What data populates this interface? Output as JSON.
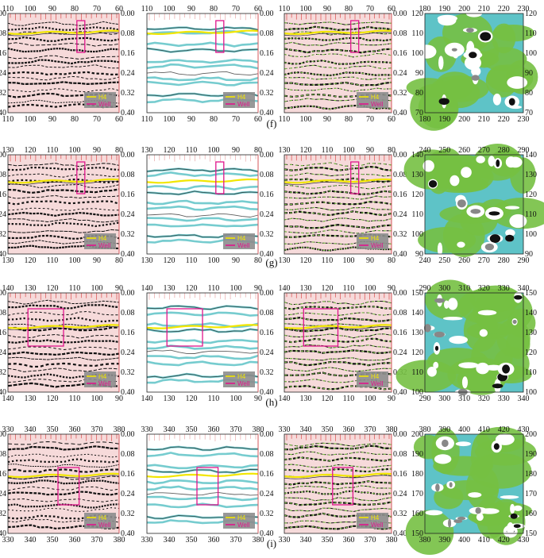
{
  "rows": [
    {
      "caption": "(f)",
      "seismic": {
        "x_ticks": [
          "110",
          "100",
          "90",
          "80",
          "70",
          "60"
        ],
        "y_ticks": [
          "0.00",
          "0.08",
          "0.16",
          "0.24",
          "0.32",
          "0.40"
        ],
        "horizon_t": 0.08
      },
      "map": {
        "x_ticks": [
          "180",
          "190",
          "200",
          "210",
          "220",
          "230"
        ],
        "y_ticks": [
          "120",
          "110",
          "100",
          "90",
          "80",
          "70"
        ]
      }
    },
    {
      "caption": "(g)",
      "seismic": {
        "x_ticks": [
          "130",
          "120",
          "110",
          "100",
          "90",
          "80"
        ],
        "y_ticks": [
          "0.00",
          "0.08",
          "0.16",
          "0.24",
          "0.32",
          "0.40"
        ],
        "horizon_t": 0.11
      },
      "map": {
        "x_ticks": [
          "240",
          "250",
          "260",
          "270",
          "280",
          "290"
        ],
        "y_ticks": [
          "140",
          "130",
          "120",
          "110",
          "100",
          "90"
        ]
      }
    },
    {
      "caption": "(h)",
      "seismic": {
        "x_ticks": [
          "140",
          "130",
          "120",
          "110",
          "100",
          "90"
        ],
        "y_ticks": [
          "0.00",
          "0.08",
          "0.16",
          "0.24",
          "0.32",
          "0.40"
        ],
        "horizon_t": 0.14
      },
      "map": {
        "x_ticks": [
          "290",
          "300",
          "310",
          "320",
          "330",
          "340"
        ],
        "y_ticks": [
          "150",
          "140",
          "130",
          "120",
          "110",
          "100"
        ]
      }
    },
    {
      "caption": "(i)",
      "seismic": {
        "x_ticks": [
          "330",
          "340",
          "350",
          "360",
          "370",
          "380"
        ],
        "y_ticks": [
          "0.00",
          "0.08",
          "0.16",
          "0.24",
          "0.32",
          "0.40"
        ],
        "horizon_t": 0.17
      },
      "map": {
        "x_ticks": [
          "380",
          "390",
          "400",
          "410",
          "420",
          "430"
        ],
        "y_ticks": [
          "200",
          "190",
          "180",
          "170",
          "160",
          "150"
        ]
      }
    }
  ],
  "legend": {
    "horizon": "H4",
    "well": "Well"
  },
  "colors": {
    "horizon": "#f2e600",
    "box": "#e0158c",
    "map_green": "#76c043",
    "map_cyan": "#5ec3c7",
    "trace": "#111111",
    "trace_bg": "#f6dada"
  }
}
